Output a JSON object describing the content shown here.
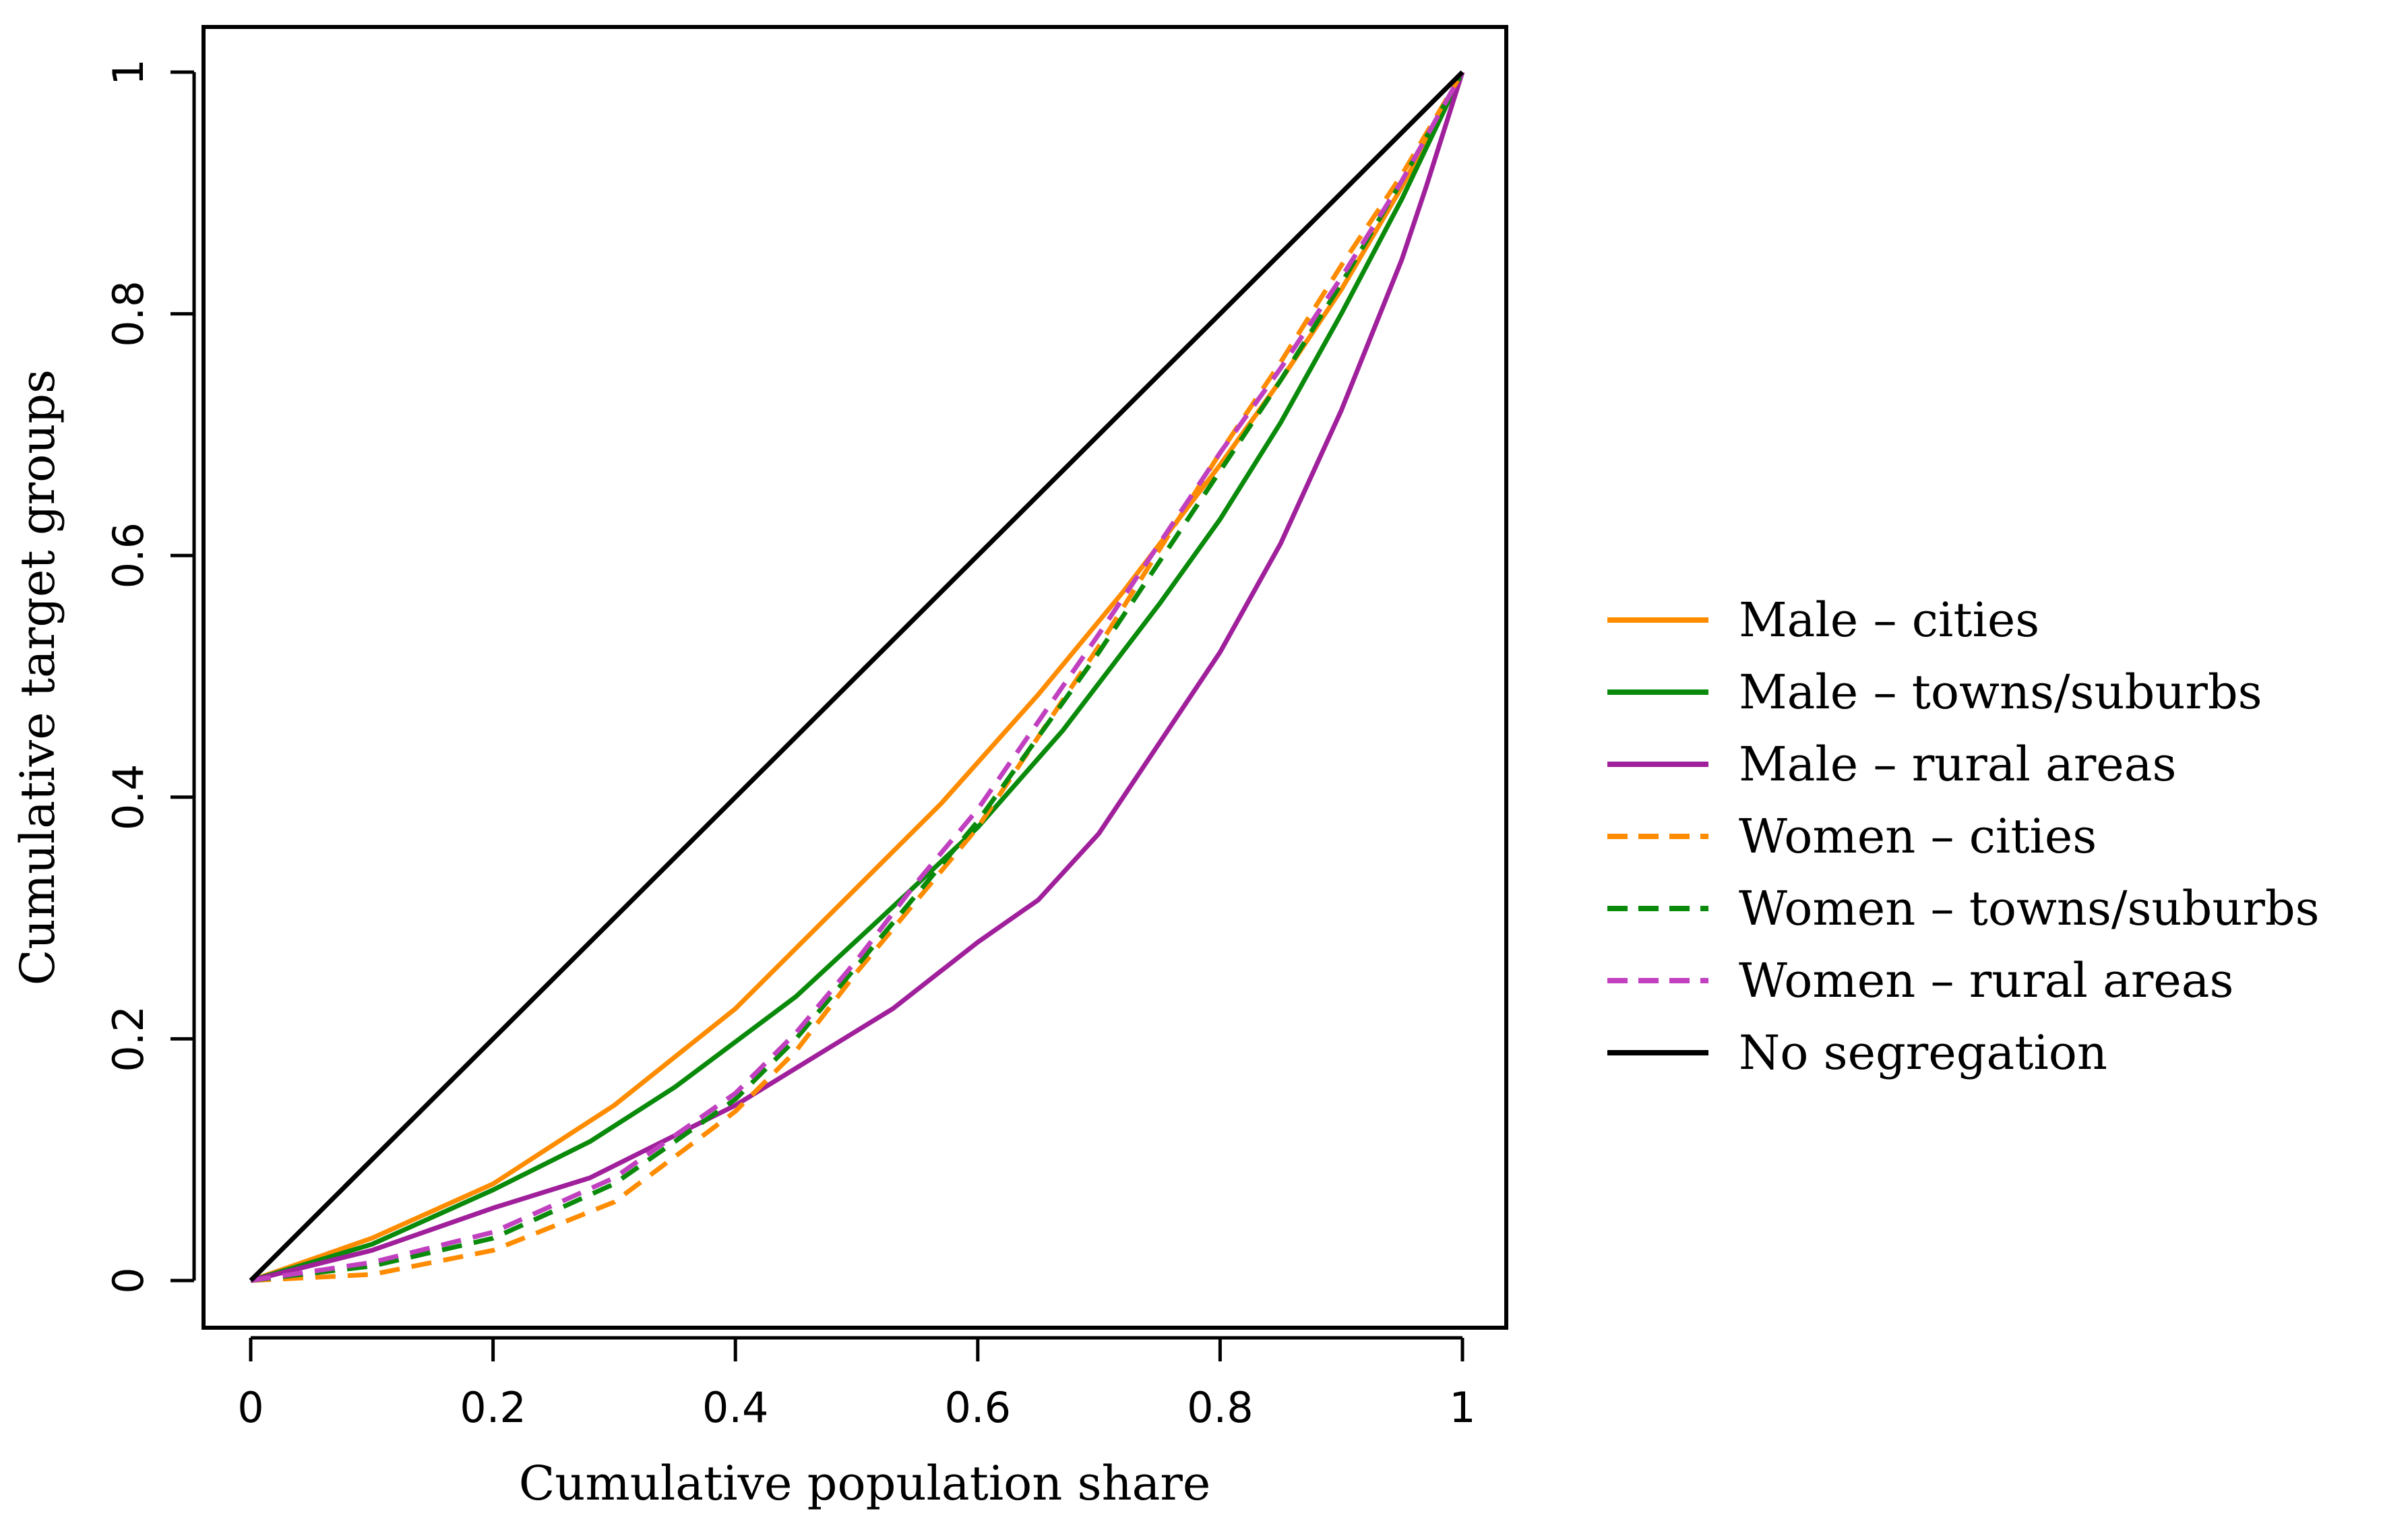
{
  "chart_data": {
    "type": "line",
    "title": "",
    "xlabel": "Cumulative population share",
    "ylabel": "Cumulative target groups",
    "xlim": [
      0,
      1
    ],
    "ylim": [
      0,
      1
    ],
    "xticks": [
      0,
      0.2,
      0.4,
      0.6,
      0.8,
      1
    ],
    "xtick_labels": [
      "0",
      "0.2",
      "0.4",
      "0.6",
      "0.8",
      "1"
    ],
    "yticks": [
      0,
      0.2,
      0.4,
      0.6,
      0.8,
      1
    ],
    "ytick_labels": [
      "0",
      "0.2",
      "0.4",
      "0.6",
      "0.8",
      "1"
    ],
    "grid": false,
    "legend_position": "right",
    "series": [
      {
        "name": "Male – cities",
        "color": "#ff8c00",
        "dash": "solid",
        "x": [
          0,
          0.1,
          0.2,
          0.3,
          0.4,
          0.5,
          0.57,
          0.65,
          0.72,
          0.8,
          0.85,
          0.9,
          0.95,
          1
        ],
        "y": [
          0,
          0.035,
          0.08,
          0.145,
          0.225,
          0.325,
          0.395,
          0.485,
          0.57,
          0.675,
          0.745,
          0.82,
          0.905,
          1
        ]
      },
      {
        "name": "Male – towns/suburbs",
        "color": "#0a8a0a",
        "dash": "solid",
        "x": [
          0,
          0.1,
          0.2,
          0.28,
          0.35,
          0.45,
          0.52,
          0.6,
          0.67,
          0.75,
          0.8,
          0.85,
          0.9,
          0.95,
          1
        ],
        "y": [
          0,
          0.03,
          0.075,
          0.115,
          0.16,
          0.235,
          0.3,
          0.375,
          0.455,
          0.56,
          0.63,
          0.71,
          0.8,
          0.895,
          1
        ]
      },
      {
        "name": "Male – rural areas",
        "color": "#a0209c",
        "dash": "solid",
        "x": [
          0,
          0.1,
          0.2,
          0.28,
          0.4,
          0.53,
          0.6,
          0.65,
          0.7,
          0.8,
          0.85,
          0.9,
          0.95,
          0.97,
          1
        ],
        "y": [
          0,
          0.025,
          0.06,
          0.085,
          0.145,
          0.225,
          0.28,
          0.315,
          0.37,
          0.52,
          0.61,
          0.72,
          0.845,
          0.905,
          1
        ]
      },
      {
        "name": "Women – cities",
        "color": "#ff8c00",
        "dash": "dashed",
        "x": [
          0,
          0.1,
          0.2,
          0.3,
          0.4,
          0.45,
          0.5,
          0.55,
          0.6,
          0.7,
          0.8,
          0.85,
          0.9,
          0.95,
          1
        ],
        "y": [
          0,
          0.005,
          0.025,
          0.065,
          0.14,
          0.19,
          0.255,
          0.315,
          0.375,
          0.525,
          0.685,
          0.76,
          0.84,
          0.915,
          1
        ]
      },
      {
        "name": "Women – towns/suburbs",
        "color": "#0a8a0a",
        "dash": "dashed",
        "x": [
          0,
          0.1,
          0.2,
          0.3,
          0.4,
          0.45,
          0.5,
          0.55,
          0.6,
          0.7,
          0.8,
          0.85,
          0.9,
          0.95,
          1
        ],
        "y": [
          0,
          0.012,
          0.035,
          0.08,
          0.15,
          0.2,
          0.26,
          0.32,
          0.38,
          0.52,
          0.67,
          0.745,
          0.825,
          0.91,
          1
        ]
      },
      {
        "name": "Women – rural areas",
        "color": "#c040c0",
        "dash": "dashed",
        "x": [
          0,
          0.1,
          0.2,
          0.3,
          0.4,
          0.45,
          0.5,
          0.55,
          0.6,
          0.7,
          0.8,
          0.85,
          0.9,
          0.95,
          1
        ],
        "y": [
          0,
          0.015,
          0.04,
          0.085,
          0.155,
          0.205,
          0.265,
          0.33,
          0.39,
          0.535,
          0.685,
          0.755,
          0.83,
          0.91,
          1
        ]
      },
      {
        "name": "No segregation",
        "color": "#000000",
        "dash": "solid",
        "x": [
          0,
          1
        ],
        "y": [
          0,
          1
        ]
      }
    ]
  }
}
